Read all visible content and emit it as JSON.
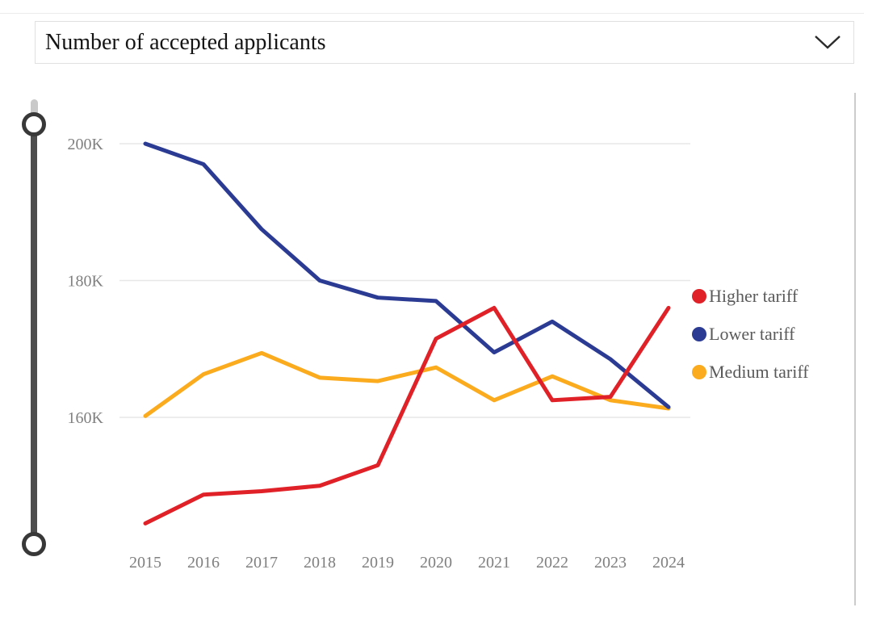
{
  "header": {
    "dropdown": {
      "selected_value": "Number of accepted applicants"
    }
  },
  "chart_data": {
    "type": "line",
    "title": "Number of accepted applicants",
    "categories": [
      "2015",
      "2016",
      "2017",
      "2018",
      "2019",
      "2020",
      "2021",
      "2022",
      "2023",
      "2024"
    ],
    "y_ticks": [
      {
        "value": 200000,
        "label": "200K"
      },
      {
        "value": 180000,
        "label": "180K"
      },
      {
        "value": 160000,
        "label": "160K"
      }
    ],
    "ylim": [
      140000,
      204000
    ],
    "grid": "horizontal-only",
    "legend_position": "right",
    "series": [
      {
        "name": "Higher tariff",
        "color": "#E02127",
        "values": [
          144500,
          148700,
          149200,
          150000,
          153000,
          171500,
          176000,
          162500,
          163000,
          176000
        ]
      },
      {
        "name": "Lower tariff",
        "color": "#2B3B94",
        "values": [
          200000,
          197000,
          187500,
          180000,
          177500,
          177000,
          169500,
          174000,
          168500,
          161500
        ]
      },
      {
        "name": "Medium tariff",
        "color": "#FAAB1E",
        "values": [
          160200,
          166300,
          169400,
          165800,
          165300,
          167300,
          162500,
          166000,
          162500,
          161300
        ]
      }
    ]
  },
  "colors": {
    "grid": "#e7e7e7",
    "tick_label": "#7f7f7f",
    "legend_label": "#5a5a5a"
  }
}
